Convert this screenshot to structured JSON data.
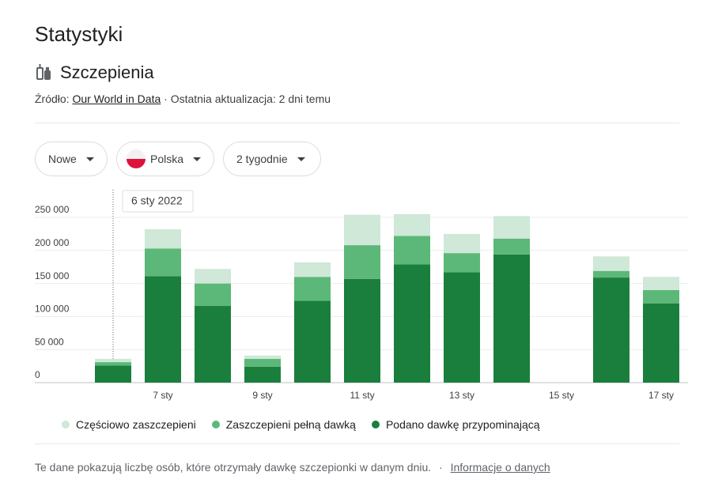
{
  "header": {
    "title": "Statystyki",
    "subtitle": "Szczepienia",
    "source_label": "Źródło:",
    "source_link": "Our World in Data",
    "updated": "· Ostatnia aktualizacja: 2 dni temu"
  },
  "filters": [
    "Nowe",
    "Polska",
    "2 tygodnie"
  ],
  "tooltip": "6 sty 2022",
  "chart_data": {
    "type": "stacked-bar",
    "categories": [
      null,
      "7 sty",
      null,
      "9 sty",
      null,
      "11 sty",
      null,
      "13 sty",
      null,
      "15 sty",
      null,
      "17 sty"
    ],
    "series": [
      {
        "name": "Częściowo zaszczepieni",
        "color": "#cfe8d7",
        "values": [
          5000,
          29000,
          22000,
          5000,
          22000,
          46000,
          33000,
          29000,
          34000,
          null,
          22000,
          20000
        ]
      },
      {
        "name": "Zaszczepieni pełną dawką",
        "color": "#5cb878",
        "values": [
          5000,
          42000,
          34000,
          12000,
          36000,
          51000,
          43000,
          29000,
          24000,
          null,
          10000,
          20000
        ]
      },
      {
        "name": "Podano dawkę przypominającą",
        "color": "#1a7f3c",
        "values": [
          26000,
          161000,
          116000,
          24000,
          124000,
          157000,
          179000,
          167000,
          194000,
          null,
          159000,
          120000
        ]
      }
    ],
    "ylim": [
      0,
      250000
    ],
    "yticks": [
      0,
      {
        "value": 50000,
        "label": "50 000"
      },
      {
        "value": 100000,
        "label": "100 000"
      },
      {
        "value": 150000,
        "label": "150 000"
      },
      {
        "value": 200000,
        "label": "200 000"
      },
      {
        "value": 250000,
        "label": "250 000"
      }
    ],
    "grid": true
  },
  "footer": {
    "note": "Te dane pokazują liczbę osób, które otrzymały dawkę szczepionki w danym dniu.",
    "separator": "·",
    "link": "Informacje o danych"
  }
}
